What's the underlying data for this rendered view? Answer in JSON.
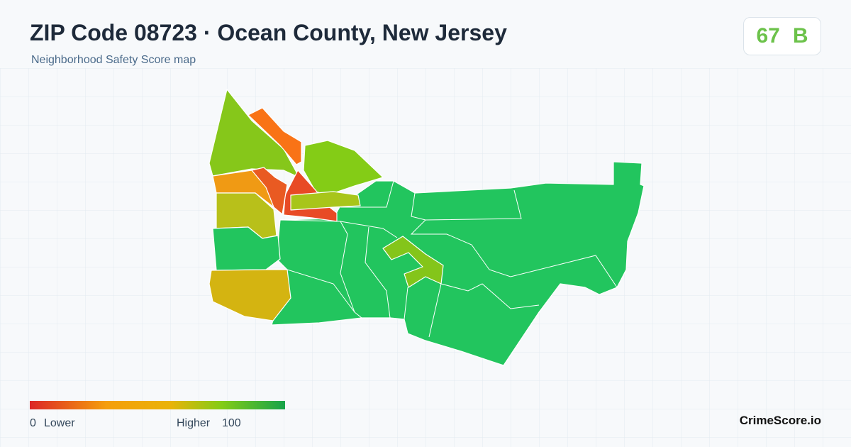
{
  "header": {
    "title": "ZIP Code 08723 · Ocean County, New Jersey",
    "subtitle": "Neighborhood Safety Score map"
  },
  "score": {
    "value": 67,
    "grade": "B"
  },
  "legend": {
    "min": "0",
    "low_label": "Lower",
    "high_label": "Higher",
    "max": "100"
  },
  "brand": "CrimeScore.io"
}
